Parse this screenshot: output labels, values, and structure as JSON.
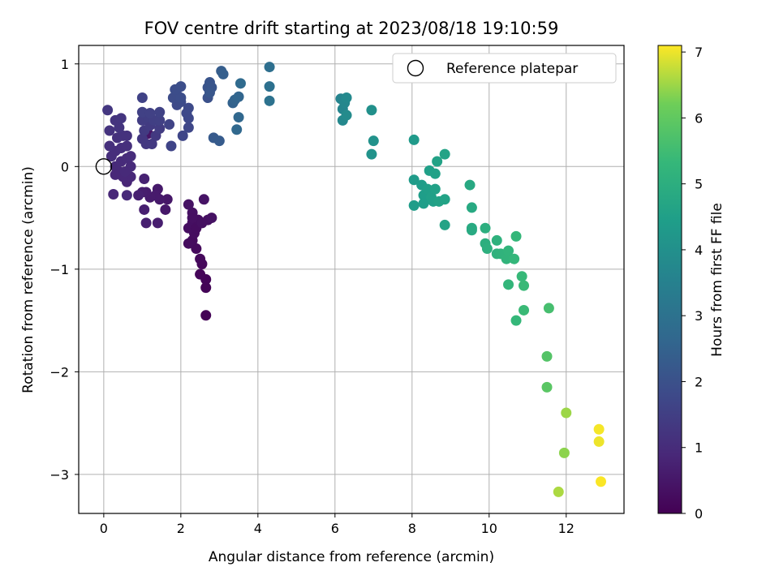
{
  "chart_data": {
    "type": "scatter",
    "title": "FOV centre drift starting at 2023/08/18 19:10:59",
    "xlabel": "Angular distance from reference (arcmin)",
    "ylabel": "Rotation from reference (arcmin)",
    "xlim": [
      -0.65,
      13.5
    ],
    "ylim": [
      -3.38,
      1.18
    ],
    "xticks": [
      0,
      2,
      4,
      6,
      8,
      10,
      12
    ],
    "yticks": [
      -3,
      -2,
      -1,
      0,
      1
    ],
    "xtick_labels": [
      "0",
      "2",
      "4",
      "6",
      "8",
      "10",
      "12"
    ],
    "ytick_labels": [
      "−3",
      "−2",
      "−1",
      "0",
      "1"
    ],
    "grid": true,
    "legend": {
      "position": "top-right",
      "entries": [
        "Reference platepar"
      ]
    },
    "reference_point": {
      "x": 0,
      "y": 0
    },
    "colorbar": {
      "label": "Hours from first FF file",
      "range": [
        0,
        7.1
      ],
      "ticks": [
        0,
        1,
        2,
        3,
        4,
        5,
        6,
        7
      ],
      "tick_labels": [
        "0",
        "1",
        "2",
        "3",
        "4",
        "5",
        "6",
        "7"
      ],
      "colormap": "viridis"
    },
    "points": [
      {
        "x": 2.65,
        "y": -1.45,
        "c": 0.05
      },
      {
        "x": 2.65,
        "y": -1.18,
        "c": 0.08
      },
      {
        "x": 2.65,
        "y": -1.1,
        "c": 0.1
      },
      {
        "x": 2.5,
        "y": -1.05,
        "c": 0.12
      },
      {
        "x": 2.55,
        "y": -0.95,
        "c": 0.15
      },
      {
        "x": 2.5,
        "y": -0.9,
        "c": 0.18
      },
      {
        "x": 2.4,
        "y": -0.8,
        "c": 0.2
      },
      {
        "x": 2.3,
        "y": -0.72,
        "c": 0.22
      },
      {
        "x": 2.2,
        "y": -0.75,
        "c": 0.25
      },
      {
        "x": 2.35,
        "y": -0.65,
        "c": 0.27
      },
      {
        "x": 2.2,
        "y": -0.6,
        "c": 0.3
      },
      {
        "x": 2.3,
        "y": -0.55,
        "c": 0.32
      },
      {
        "x": 2.4,
        "y": -0.6,
        "c": 0.28
      },
      {
        "x": 2.45,
        "y": -0.52,
        "c": 0.3
      },
      {
        "x": 2.55,
        "y": -0.55,
        "c": 0.33
      },
      {
        "x": 2.7,
        "y": -0.52,
        "c": 0.35
      },
      {
        "x": 2.8,
        "y": -0.5,
        "c": 0.38
      },
      {
        "x": 2.3,
        "y": -0.45,
        "c": 0.36
      },
      {
        "x": 2.2,
        "y": -0.37,
        "c": 0.4
      },
      {
        "x": 2.6,
        "y": -0.32,
        "c": 0.42
      },
      {
        "x": 2.3,
        "y": -0.5,
        "c": 0.34
      },
      {
        "x": 1.65,
        "y": -0.32,
        "c": 0.5
      },
      {
        "x": 1.6,
        "y": -0.42,
        "c": 0.52
      },
      {
        "x": 1.45,
        "y": -0.32,
        "c": 0.55
      },
      {
        "x": 1.4,
        "y": -0.22,
        "c": 0.55
      },
      {
        "x": 1.35,
        "y": -0.28,
        "c": 0.58
      },
      {
        "x": 1.2,
        "y": -0.3,
        "c": 0.6
      },
      {
        "x": 1.1,
        "y": -0.25,
        "c": 0.62
      },
      {
        "x": 1.0,
        "y": -0.25,
        "c": 0.65
      },
      {
        "x": 1.05,
        "y": -0.42,
        "c": 0.68
      },
      {
        "x": 1.1,
        "y": -0.55,
        "c": 0.7
      },
      {
        "x": 1.4,
        "y": -0.55,
        "c": 0.66
      },
      {
        "x": 0.9,
        "y": -0.28,
        "c": 0.72
      },
      {
        "x": 1.05,
        "y": -0.12,
        "c": 0.75
      },
      {
        "x": 1.15,
        "y": 0.32,
        "c": 0.45
      },
      {
        "x": 0.6,
        "y": -0.28,
        "c": 0.95
      },
      {
        "x": 0.25,
        "y": -0.27,
        "c": 0.9
      },
      {
        "x": 0.6,
        "y": -0.15,
        "c": 0.85
      },
      {
        "x": 0.7,
        "y": -0.1,
        "c": 0.88
      },
      {
        "x": 0.5,
        "y": -0.1,
        "c": 0.9
      },
      {
        "x": 0.4,
        "y": -0.05,
        "c": 0.92
      },
      {
        "x": 0.3,
        "y": 0.0,
        "c": 0.95
      },
      {
        "x": 0.45,
        "y": 0.05,
        "c": 0.98
      },
      {
        "x": 0.6,
        "y": 0.08,
        "c": 1.0
      },
      {
        "x": 0.7,
        "y": 0.1,
        "c": 1.02
      },
      {
        "x": 0.2,
        "y": 0.1,
        "c": 1.05
      },
      {
        "x": 0.3,
        "y": 0.15,
        "c": 1.05
      },
      {
        "x": 0.45,
        "y": 0.18,
        "c": 1.08
      },
      {
        "x": 0.6,
        "y": 0.2,
        "c": 1.1
      },
      {
        "x": 0.15,
        "y": 0.2,
        "c": 1.1
      },
      {
        "x": 0.35,
        "y": 0.28,
        "c": 1.12
      },
      {
        "x": 0.5,
        "y": 0.3,
        "c": 1.15
      },
      {
        "x": 0.6,
        "y": 0.3,
        "c": 1.15
      },
      {
        "x": 0.15,
        "y": 0.35,
        "c": 1.18
      },
      {
        "x": 0.4,
        "y": 0.38,
        "c": 1.2
      },
      {
        "x": 0.3,
        "y": 0.45,
        "c": 1.22
      },
      {
        "x": 0.45,
        "y": 0.47,
        "c": 1.25
      },
      {
        "x": 0.1,
        "y": 0.55,
        "c": 1.28
      },
      {
        "x": 0.7,
        "y": 0.0,
        "c": 0.98
      },
      {
        "x": 0.55,
        "y": -0.05,
        "c": 0.95
      },
      {
        "x": 0.3,
        "y": -0.08,
        "c": 0.9
      },
      {
        "x": 1.0,
        "y": 0.27,
        "c": 1.3
      },
      {
        "x": 1.1,
        "y": 0.22,
        "c": 1.32
      },
      {
        "x": 1.25,
        "y": 0.22,
        "c": 1.35
      },
      {
        "x": 1.35,
        "y": 0.3,
        "c": 1.35
      },
      {
        "x": 1.05,
        "y": 0.35,
        "c": 1.38
      },
      {
        "x": 1.2,
        "y": 0.4,
        "c": 1.4
      },
      {
        "x": 1.45,
        "y": 0.37,
        "c": 1.42
      },
      {
        "x": 1.0,
        "y": 0.45,
        "c": 1.45
      },
      {
        "x": 1.15,
        "y": 0.48,
        "c": 1.48
      },
      {
        "x": 1.3,
        "y": 0.45,
        "c": 1.5
      },
      {
        "x": 1.45,
        "y": 0.45,
        "c": 1.52
      },
      {
        "x": 1.0,
        "y": 0.53,
        "c": 1.55
      },
      {
        "x": 1.2,
        "y": 0.52,
        "c": 1.55
      },
      {
        "x": 1.45,
        "y": 0.53,
        "c": 1.58
      },
      {
        "x": 1.0,
        "y": 0.67,
        "c": 1.6
      },
      {
        "x": 1.7,
        "y": 0.41,
        "c": 1.62
      },
      {
        "x": 1.75,
        "y": 0.2,
        "c": 1.65
      },
      {
        "x": 2.05,
        "y": 0.3,
        "c": 1.7
      },
      {
        "x": 2.2,
        "y": 0.38,
        "c": 1.72
      },
      {
        "x": 2.2,
        "y": 0.47,
        "c": 1.75
      },
      {
        "x": 2.15,
        "y": 0.52,
        "c": 1.78
      },
      {
        "x": 2.2,
        "y": 0.57,
        "c": 1.8
      },
      {
        "x": 1.9,
        "y": 0.6,
        "c": 1.8
      },
      {
        "x": 2.0,
        "y": 0.63,
        "c": 1.82
      },
      {
        "x": 1.8,
        "y": 0.67,
        "c": 1.85
      },
      {
        "x": 1.9,
        "y": 0.7,
        "c": 1.85
      },
      {
        "x": 2.0,
        "y": 0.67,
        "c": 1.88
      },
      {
        "x": 1.85,
        "y": 0.75,
        "c": 1.9
      },
      {
        "x": 2.0,
        "y": 0.78,
        "c": 1.92
      },
      {
        "x": 2.7,
        "y": 0.67,
        "c": 2.0
      },
      {
        "x": 2.7,
        "y": 0.77,
        "c": 2.05
      },
      {
        "x": 2.75,
        "y": 0.82,
        "c": 2.1
      },
      {
        "x": 2.8,
        "y": 0.77,
        "c": 2.12
      },
      {
        "x": 2.75,
        "y": 0.72,
        "c": 2.15
      },
      {
        "x": 2.85,
        "y": 0.28,
        "c": 2.25
      },
      {
        "x": 3.0,
        "y": 0.25,
        "c": 2.3
      },
      {
        "x": 3.05,
        "y": 0.93,
        "c": 2.35
      },
      {
        "x": 3.1,
        "y": 0.9,
        "c": 2.4
      },
      {
        "x": 3.35,
        "y": 0.62,
        "c": 2.5
      },
      {
        "x": 3.4,
        "y": 0.65,
        "c": 2.55
      },
      {
        "x": 3.5,
        "y": 0.68,
        "c": 2.6
      },
      {
        "x": 3.5,
        "y": 0.48,
        "c": 2.65
      },
      {
        "x": 3.45,
        "y": 0.36,
        "c": 2.7
      },
      {
        "x": 3.55,
        "y": 0.81,
        "c": 2.75
      },
      {
        "x": 4.3,
        "y": 0.97,
        "c": 2.9
      },
      {
        "x": 4.3,
        "y": 0.78,
        "c": 2.95
      },
      {
        "x": 4.3,
        "y": 0.64,
        "c": 3.0
      },
      {
        "x": 6.15,
        "y": 0.66,
        "c": 3.6
      },
      {
        "x": 6.2,
        "y": 0.56,
        "c": 3.65
      },
      {
        "x": 6.25,
        "y": 0.62,
        "c": 3.7
      },
      {
        "x": 6.2,
        "y": 0.45,
        "c": 3.75
      },
      {
        "x": 6.3,
        "y": 0.67,
        "c": 3.78
      },
      {
        "x": 6.3,
        "y": 0.5,
        "c": 3.82
      },
      {
        "x": 6.95,
        "y": 0.55,
        "c": 4.0
      },
      {
        "x": 7.0,
        "y": 0.25,
        "c": 4.05
      },
      {
        "x": 6.95,
        "y": 0.12,
        "c": 4.1
      },
      {
        "x": 8.05,
        "y": 0.26,
        "c": 4.3
      },
      {
        "x": 8.05,
        "y": -0.13,
        "c": 4.35
      },
      {
        "x": 8.05,
        "y": -0.38,
        "c": 4.4
      },
      {
        "x": 8.25,
        "y": -0.18,
        "c": 4.42
      },
      {
        "x": 8.3,
        "y": -0.28,
        "c": 4.45
      },
      {
        "x": 8.3,
        "y": -0.36,
        "c": 4.45
      },
      {
        "x": 8.4,
        "y": -0.22,
        "c": 4.48
      },
      {
        "x": 8.45,
        "y": -0.04,
        "c": 4.5
      },
      {
        "x": 8.5,
        "y": -0.3,
        "c": 4.5
      },
      {
        "x": 8.55,
        "y": -0.34,
        "c": 4.52
      },
      {
        "x": 8.6,
        "y": -0.07,
        "c": 4.55
      },
      {
        "x": 8.6,
        "y": -0.22,
        "c": 4.55
      },
      {
        "x": 8.65,
        "y": 0.05,
        "c": 4.58
      },
      {
        "x": 8.7,
        "y": -0.34,
        "c": 4.58
      },
      {
        "x": 8.85,
        "y": 0.12,
        "c": 4.6
      },
      {
        "x": 8.85,
        "y": -0.32,
        "c": 4.6
      },
      {
        "x": 8.85,
        "y": -0.57,
        "c": 4.62
      },
      {
        "x": 9.5,
        "y": -0.18,
        "c": 4.8
      },
      {
        "x": 9.55,
        "y": -0.4,
        "c": 4.82
      },
      {
        "x": 9.55,
        "y": -0.6,
        "c": 4.85
      },
      {
        "x": 9.55,
        "y": -0.62,
        "c": 4.85
      },
      {
        "x": 9.9,
        "y": -0.6,
        "c": 5.0
      },
      {
        "x": 9.9,
        "y": -0.75,
        "c": 5.02
      },
      {
        "x": 9.95,
        "y": -0.8,
        "c": 5.05
      },
      {
        "x": 10.2,
        "y": -0.72,
        "c": 5.1
      },
      {
        "x": 10.2,
        "y": -0.85,
        "c": 5.12
      },
      {
        "x": 10.3,
        "y": -0.85,
        "c": 5.15
      },
      {
        "x": 10.45,
        "y": -0.9,
        "c": 5.2
      },
      {
        "x": 10.5,
        "y": -0.82,
        "c": 5.22
      },
      {
        "x": 10.5,
        "y": -1.15,
        "c": 5.25
      },
      {
        "x": 10.65,
        "y": -0.9,
        "c": 5.28
      },
      {
        "x": 10.7,
        "y": -0.68,
        "c": 5.3
      },
      {
        "x": 10.7,
        "y": -1.5,
        "c": 5.32
      },
      {
        "x": 10.85,
        "y": -1.07,
        "c": 5.35
      },
      {
        "x": 10.9,
        "y": -1.16,
        "c": 5.38
      },
      {
        "x": 10.9,
        "y": -1.4,
        "c": 5.4
      },
      {
        "x": 11.55,
        "y": -1.38,
        "c": 5.6
      },
      {
        "x": 11.5,
        "y": -1.85,
        "c": 5.8
      },
      {
        "x": 11.5,
        "y": -2.15,
        "c": 5.9
      },
      {
        "x": 11.8,
        "y": -3.17,
        "c": 6.6
      },
      {
        "x": 11.95,
        "y": -2.79,
        "c": 6.4
      },
      {
        "x": 12.0,
        "y": -2.4,
        "c": 6.5
      },
      {
        "x": 12.85,
        "y": -2.56,
        "c": 7.05
      },
      {
        "x": 12.85,
        "y": -2.68,
        "c": 7.0
      },
      {
        "x": 12.9,
        "y": -3.07,
        "c": 7.08
      }
    ]
  }
}
